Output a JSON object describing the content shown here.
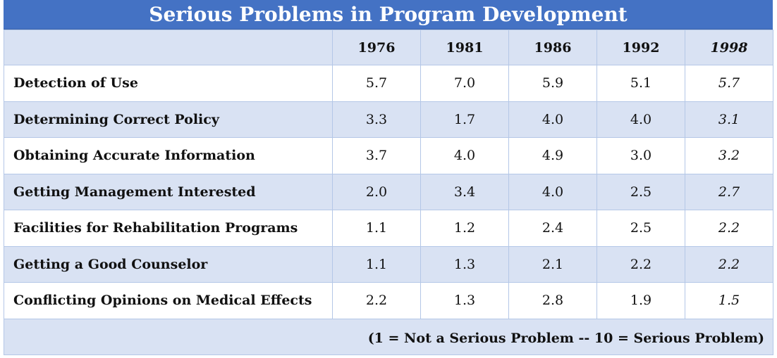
{
  "chart_data": {
    "type": "table",
    "title": "Serious Problems in Program Development",
    "columns": [
      "1976",
      "1981",
      "1986",
      "1992",
      "1998"
    ],
    "rows": [
      {
        "label": "Detection of Use",
        "values": [
          "5.7",
          "7.0",
          "5.9",
          "5.1",
          "5.7"
        ]
      },
      {
        "label": "Determining Correct Policy",
        "values": [
          "3.3",
          "1.7",
          "4.0",
          "4.0",
          "3.1"
        ]
      },
      {
        "label": "Obtaining Accurate Information",
        "values": [
          "3.7",
          "4.0",
          "4.9",
          "3.0",
          "3.2"
        ]
      },
      {
        "label": "Getting Management Interested",
        "values": [
          "2.0",
          "3.4",
          "4.0",
          "2.5",
          "2.7"
        ]
      },
      {
        "label": "Facilities for Rehabilitation Programs",
        "values": [
          "1.1",
          "1.2",
          "2.4",
          "2.5",
          "2.2"
        ]
      },
      {
        "label": "Getting a Good Counselor",
        "values": [
          "1.1",
          "1.3",
          "2.1",
          "2.2",
          "2.2"
        ]
      },
      {
        "label": "Conflicting Opinions on Medical Effects",
        "values": [
          "2.2",
          "1.3",
          "2.8",
          "1.9",
          "1.5"
        ]
      }
    ],
    "footnote": "(1 = Not a Serious Problem -- 10 = Serious Problem)",
    "italic_column": "1998"
  },
  "colors": {
    "title_background": "#4472c4",
    "title_text": "#ffffff",
    "shaded_row": "#d9e2f3",
    "plain_row": "#ffffff",
    "border": "#b4c7e7"
  }
}
